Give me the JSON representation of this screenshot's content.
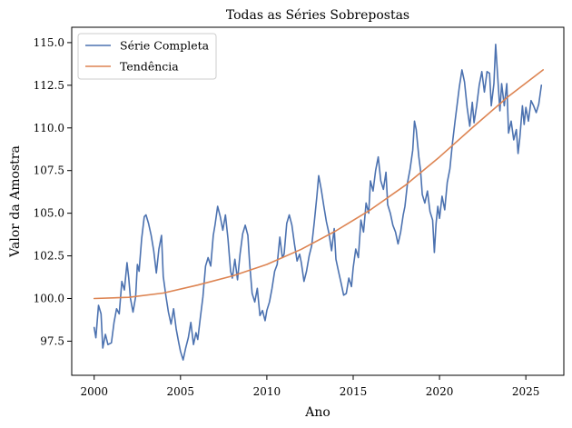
{
  "chart_data": {
    "type": "line",
    "title": "Todas as Séries Sobrepostas",
    "xlabel": "Ano",
    "ylabel": "Valor da Amostra",
    "xlim": [
      1998.7,
      2027.2
    ],
    "ylim": [
      95.5,
      115.9
    ],
    "x_ticks": [
      2000,
      2005,
      2010,
      2015,
      2020,
      2025
    ],
    "y_ticks": [
      97.5,
      100.0,
      102.5,
      105.0,
      107.5,
      110.0,
      112.5,
      115.0
    ],
    "x_tick_labels": [
      "2000",
      "2005",
      "2010",
      "2015",
      "2020",
      "2025"
    ],
    "y_tick_labels": [
      "97.5",
      "100.0",
      "102.5",
      "105.0",
      "107.5",
      "110.0",
      "112.5",
      "115.0"
    ],
    "grid": false,
    "legend_position": "top-left",
    "series": [
      {
        "name": "Série Completa",
        "color": "#4c72b0",
        "points": [
          [
            2000.0,
            98.3
          ],
          [
            2000.1,
            97.7
          ],
          [
            2000.25,
            99.6
          ],
          [
            2000.4,
            99.1
          ],
          [
            2000.5,
            97.1
          ],
          [
            2000.65,
            97.9
          ],
          [
            2000.8,
            97.3
          ],
          [
            2001.0,
            97.4
          ],
          [
            2001.15,
            98.6
          ],
          [
            2001.3,
            99.4
          ],
          [
            2001.45,
            99.1
          ],
          [
            2001.6,
            101.0
          ],
          [
            2001.75,
            100.5
          ],
          [
            2001.9,
            102.1
          ],
          [
            2002.0,
            101.2
          ],
          [
            2002.1,
            100.0
          ],
          [
            2002.25,
            99.2
          ],
          [
            2002.4,
            100.1
          ],
          [
            2002.5,
            102.0
          ],
          [
            2002.6,
            101.6
          ],
          [
            2002.75,
            103.5
          ],
          [
            2002.9,
            104.8
          ],
          [
            2003.0,
            104.9
          ],
          [
            2003.15,
            104.4
          ],
          [
            2003.3,
            103.7
          ],
          [
            2003.45,
            102.8
          ],
          [
            2003.6,
            101.5
          ],
          [
            2003.75,
            102.9
          ],
          [
            2003.9,
            103.7
          ],
          [
            2004.0,
            101.3
          ],
          [
            2004.15,
            100.2
          ],
          [
            2004.3,
            99.2
          ],
          [
            2004.45,
            98.5
          ],
          [
            2004.6,
            99.4
          ],
          [
            2004.75,
            98.2
          ],
          [
            2004.9,
            97.4
          ],
          [
            2005.0,
            96.9
          ],
          [
            2005.15,
            96.4
          ],
          [
            2005.3,
            97.1
          ],
          [
            2005.45,
            97.7
          ],
          [
            2005.6,
            98.6
          ],
          [
            2005.75,
            97.3
          ],
          [
            2005.9,
            98.0
          ],
          [
            2006.0,
            97.6
          ],
          [
            2006.15,
            98.9
          ],
          [
            2006.3,
            100.1
          ],
          [
            2006.45,
            101.9
          ],
          [
            2006.6,
            102.4
          ],
          [
            2006.75,
            101.9
          ],
          [
            2006.9,
            103.7
          ],
          [
            2007.0,
            104.3
          ],
          [
            2007.15,
            105.4
          ],
          [
            2007.3,
            104.8
          ],
          [
            2007.45,
            104.0
          ],
          [
            2007.6,
            104.9
          ],
          [
            2007.75,
            103.5
          ],
          [
            2007.9,
            101.6
          ],
          [
            2008.0,
            101.2
          ],
          [
            2008.15,
            102.3
          ],
          [
            2008.3,
            101.1
          ],
          [
            2008.45,
            102.6
          ],
          [
            2008.6,
            103.8
          ],
          [
            2008.75,
            104.3
          ],
          [
            2008.9,
            103.7
          ],
          [
            2009.0,
            102.1
          ],
          [
            2009.15,
            100.3
          ],
          [
            2009.3,
            99.8
          ],
          [
            2009.45,
            100.6
          ],
          [
            2009.6,
            99.0
          ],
          [
            2009.75,
            99.3
          ],
          [
            2009.9,
            98.7
          ],
          [
            2010.0,
            99.3
          ],
          [
            2010.15,
            99.8
          ],
          [
            2010.3,
            100.6
          ],
          [
            2010.45,
            101.6
          ],
          [
            2010.6,
            102.0
          ],
          [
            2010.75,
            103.6
          ],
          [
            2010.9,
            102.4
          ],
          [
            2011.0,
            102.6
          ],
          [
            2011.15,
            104.4
          ],
          [
            2011.3,
            104.9
          ],
          [
            2011.45,
            104.3
          ],
          [
            2011.6,
            103.2
          ],
          [
            2011.75,
            102.2
          ],
          [
            2011.9,
            102.6
          ],
          [
            2012.0,
            102.1
          ],
          [
            2012.15,
            101.0
          ],
          [
            2012.3,
            101.6
          ],
          [
            2012.45,
            102.5
          ],
          [
            2012.6,
            103.1
          ],
          [
            2012.75,
            104.5
          ],
          [
            2012.9,
            106.0
          ],
          [
            2013.0,
            107.2
          ],
          [
            2013.15,
            106.4
          ],
          [
            2013.3,
            105.4
          ],
          [
            2013.45,
            104.5
          ],
          [
            2013.6,
            103.8
          ],
          [
            2013.75,
            102.8
          ],
          [
            2013.9,
            104.1
          ],
          [
            2014.0,
            102.3
          ],
          [
            2014.15,
            101.6
          ],
          [
            2014.3,
            100.9
          ],
          [
            2014.45,
            100.2
          ],
          [
            2014.6,
            100.3
          ],
          [
            2014.75,
            101.2
          ],
          [
            2014.9,
            100.7
          ],
          [
            2015.0,
            101.8
          ],
          [
            2015.15,
            102.9
          ],
          [
            2015.3,
            102.4
          ],
          [
            2015.45,
            104.6
          ],
          [
            2015.6,
            103.9
          ],
          [
            2015.75,
            105.6
          ],
          [
            2015.9,
            105.0
          ],
          [
            2016.0,
            106.9
          ],
          [
            2016.15,
            106.3
          ],
          [
            2016.3,
            107.5
          ],
          [
            2016.45,
            108.3
          ],
          [
            2016.6,
            106.9
          ],
          [
            2016.75,
            106.4
          ],
          [
            2016.9,
            107.4
          ],
          [
            2017.0,
            105.5
          ],
          [
            2017.15,
            105.0
          ],
          [
            2017.3,
            104.3
          ],
          [
            2017.45,
            103.9
          ],
          [
            2017.6,
            103.2
          ],
          [
            2017.75,
            103.9
          ],
          [
            2017.9,
            104.9
          ],
          [
            2018.0,
            105.4
          ],
          [
            2018.15,
            106.8
          ],
          [
            2018.3,
            107.6
          ],
          [
            2018.45,
            108.7
          ],
          [
            2018.55,
            110.4
          ],
          [
            2018.65,
            109.9
          ],
          [
            2018.8,
            108.3
          ],
          [
            2018.9,
            107.5
          ],
          [
            2019.0,
            106.1
          ],
          [
            2019.15,
            105.6
          ],
          [
            2019.3,
            106.3
          ],
          [
            2019.45,
            105.1
          ],
          [
            2019.6,
            104.6
          ],
          [
            2019.7,
            102.7
          ],
          [
            2019.8,
            104.4
          ],
          [
            2019.9,
            105.4
          ],
          [
            2020.0,
            104.7
          ],
          [
            2020.15,
            106.0
          ],
          [
            2020.3,
            105.2
          ],
          [
            2020.45,
            106.8
          ],
          [
            2020.6,
            107.6
          ],
          [
            2020.75,
            109.1
          ],
          [
            2020.9,
            110.4
          ],
          [
            2021.0,
            111.2
          ],
          [
            2021.15,
            112.4
          ],
          [
            2021.3,
            113.4
          ],
          [
            2021.45,
            112.7
          ],
          [
            2021.6,
            111.2
          ],
          [
            2021.75,
            110.1
          ],
          [
            2021.9,
            111.5
          ],
          [
            2022.0,
            110.3
          ],
          [
            2022.15,
            111.3
          ],
          [
            2022.3,
            112.5
          ],
          [
            2022.45,
            113.3
          ],
          [
            2022.6,
            112.1
          ],
          [
            2022.75,
            113.3
          ],
          [
            2022.9,
            113.2
          ],
          [
            2023.0,
            111.3
          ],
          [
            2023.15,
            112.6
          ],
          [
            2023.25,
            114.9
          ],
          [
            2023.35,
            113.3
          ],
          [
            2023.5,
            111.0
          ],
          [
            2023.6,
            112.6
          ],
          [
            2023.75,
            111.3
          ],
          [
            2023.9,
            112.6
          ],
          [
            2024.0,
            109.7
          ],
          [
            2024.15,
            110.4
          ],
          [
            2024.3,
            109.3
          ],
          [
            2024.45,
            109.9
          ],
          [
            2024.55,
            108.5
          ],
          [
            2024.65,
            109.4
          ],
          [
            2024.8,
            111.3
          ],
          [
            2024.9,
            110.2
          ],
          [
            2025.0,
            111.2
          ],
          [
            2025.15,
            110.4
          ],
          [
            2025.3,
            111.6
          ],
          [
            2025.45,
            111.3
          ],
          [
            2025.6,
            110.9
          ],
          [
            2025.75,
            111.4
          ],
          [
            2025.9,
            112.5
          ]
        ]
      },
      {
        "name": "Tendência",
        "color": "#dd8452",
        "curve": "quadratic",
        "points": [
          [
            2000,
            100.0
          ],
          [
            2002,
            100.07
          ],
          [
            2004,
            100.32
          ],
          [
            2006,
            100.79
          ],
          [
            2008,
            101.32
          ],
          [
            2010,
            102.0
          ],
          [
            2012,
            102.89
          ],
          [
            2014,
            103.97
          ],
          [
            2016,
            105.2
          ],
          [
            2018,
            106.62
          ],
          [
            2020,
            108.3
          ],
          [
            2022,
            110.1
          ],
          [
            2024,
            111.85
          ],
          [
            2026,
            113.4
          ]
        ]
      }
    ]
  },
  "legend": {
    "items": [
      "Série Completa",
      "Tendência"
    ]
  }
}
